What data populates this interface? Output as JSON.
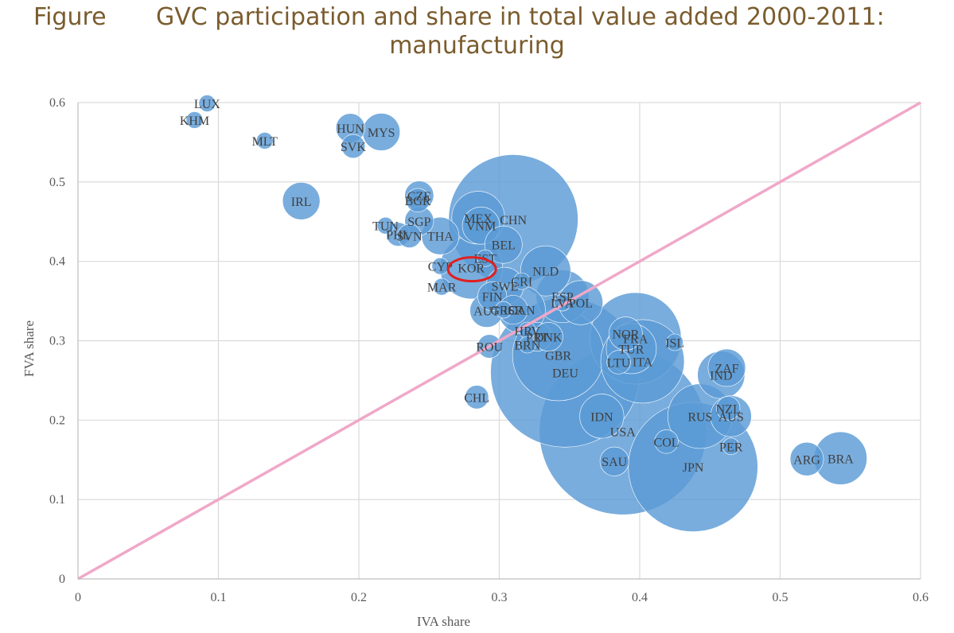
{
  "title": {
    "prefix": "Figure",
    "line1": "GVC participation and share in total value added 2000-2011:",
    "line2": "manufacturing"
  },
  "chart_data": {
    "type": "scatter",
    "subtype": "bubble",
    "xlabel": "IVA share",
    "ylabel": "FVA share",
    "xlim": [
      0,
      0.6
    ],
    "ylim": [
      0,
      0.6
    ],
    "xticks": [
      "0",
      "0.1",
      "0.2",
      "0.3",
      "0.4",
      "0.5",
      "0.6"
    ],
    "yticks": [
      "0",
      "0.1",
      "0.2",
      "0.3",
      "0.4",
      "0.5",
      "0.6"
    ],
    "grid": true,
    "reference_line": {
      "from": [
        0,
        0
      ],
      "to": [
        0.6,
        0.6
      ],
      "color": "#f0a8c8"
    },
    "bubble_color": "#5b9bd5",
    "highlight": {
      "label": "KOR",
      "color": "#e02020"
    },
    "points": [
      {
        "label": "LUX",
        "x": 0.092,
        "y": 0.599,
        "size": 1
      },
      {
        "label": "KHM",
        "x": 0.083,
        "y": 0.578,
        "size": 1
      },
      {
        "label": "MLT",
        "x": 0.133,
        "y": 0.552,
        "size": 1
      },
      {
        "label": "HUN",
        "x": 0.194,
        "y": 0.568,
        "size": 3
      },
      {
        "label": "MYS",
        "x": 0.216,
        "y": 0.563,
        "size": 5
      },
      {
        "label": "SVK",
        "x": 0.196,
        "y": 0.545,
        "size": 2
      },
      {
        "label": "IRL",
        "x": 0.159,
        "y": 0.476,
        "size": 5
      },
      {
        "label": "CZE",
        "x": 0.243,
        "y": 0.483,
        "size": 3
      },
      {
        "label": "BGR",
        "x": 0.242,
        "y": 0.477,
        "size": 2
      },
      {
        "label": "SGP",
        "x": 0.243,
        "y": 0.451,
        "size": 3
      },
      {
        "label": "TUN",
        "x": 0.219,
        "y": 0.445,
        "size": 1
      },
      {
        "label": "PHL",
        "x": 0.228,
        "y": 0.434,
        "size": 2
      },
      {
        "label": "SVN",
        "x": 0.236,
        "y": 0.432,
        "size": 2
      },
      {
        "label": "THA",
        "x": 0.258,
        "y": 0.432,
        "size": 5
      },
      {
        "label": "MEX",
        "x": 0.285,
        "y": 0.455,
        "size": 10
      },
      {
        "label": "VNM",
        "x": 0.287,
        "y": 0.445,
        "size": 5
      },
      {
        "label": "CHN",
        "x": 0.31,
        "y": 0.453,
        "size": 60
      },
      {
        "label": "BEL",
        "x": 0.303,
        "y": 0.421,
        "size": 5
      },
      {
        "label": "EST",
        "x": 0.29,
        "y": 0.404,
        "size": 1
      },
      {
        "label": "CYP",
        "x": 0.258,
        "y": 0.394,
        "size": 1
      },
      {
        "label": "KOR",
        "x": 0.28,
        "y": 0.392,
        "size": 14
      },
      {
        "label": "NLD",
        "x": 0.333,
        "y": 0.388,
        "size": 9
      },
      {
        "label": "CRI",
        "x": 0.316,
        "y": 0.375,
        "size": 1
      },
      {
        "label": "SWE",
        "x": 0.304,
        "y": 0.369,
        "size": 5
      },
      {
        "label": "MAR",
        "x": 0.259,
        "y": 0.368,
        "size": 1
      },
      {
        "label": "FIN",
        "x": 0.295,
        "y": 0.356,
        "size": 3
      },
      {
        "label": "ESP",
        "x": 0.345,
        "y": 0.356,
        "size": 10
      },
      {
        "label": "LVA",
        "x": 0.345,
        "y": 0.348,
        "size": 1
      },
      {
        "label": "POL",
        "x": 0.358,
        "y": 0.348,
        "size": 7
      },
      {
        "label": "AUT",
        "x": 0.291,
        "y": 0.338,
        "size": 4
      },
      {
        "label": "GRC",
        "x": 0.303,
        "y": 0.339,
        "size": 1
      },
      {
        "label": "ISR",
        "x": 0.31,
        "y": 0.339,
        "size": 3
      },
      {
        "label": "CAN",
        "x": 0.316,
        "y": 0.339,
        "size": 8
      },
      {
        "label": "HRV",
        "x": 0.32,
        "y": 0.313,
        "size": 1
      },
      {
        "label": "PRT",
        "x": 0.327,
        "y": 0.305,
        "size": 3
      },
      {
        "label": "DNK",
        "x": 0.335,
        "y": 0.305,
        "size": 3
      },
      {
        "label": "NOR",
        "x": 0.39,
        "y": 0.309,
        "size": 4
      },
      {
        "label": "FRA",
        "x": 0.397,
        "y": 0.303,
        "size": 30
      },
      {
        "label": "ISL",
        "x": 0.425,
        "y": 0.298,
        "size": 1
      },
      {
        "label": "ROU",
        "x": 0.293,
        "y": 0.293,
        "size": 2
      },
      {
        "label": "BRN",
        "x": 0.32,
        "y": 0.295,
        "size": 1
      },
      {
        "label": "TUR",
        "x": 0.394,
        "y": 0.29,
        "size": 9
      },
      {
        "label": "GBR",
        "x": 0.342,
        "y": 0.282,
        "size": 30
      },
      {
        "label": "LTU",
        "x": 0.385,
        "y": 0.273,
        "size": 2
      },
      {
        "label": "ITA",
        "x": 0.402,
        "y": 0.274,
        "size": 25
      },
      {
        "label": "DEU",
        "x": 0.347,
        "y": 0.26,
        "size": 80
      },
      {
        "label": "ZAF",
        "x": 0.462,
        "y": 0.266,
        "size": 5
      },
      {
        "label": "IND",
        "x": 0.458,
        "y": 0.257,
        "size": 8
      },
      {
        "label": "CHL",
        "x": 0.284,
        "y": 0.229,
        "size": 2
      },
      {
        "label": "NZL",
        "x": 0.463,
        "y": 0.215,
        "size": 2
      },
      {
        "label": "AUS",
        "x": 0.465,
        "y": 0.205,
        "size": 6
      },
      {
        "label": "RUS",
        "x": 0.443,
        "y": 0.205,
        "size": 15
      },
      {
        "label": "IDN",
        "x": 0.373,
        "y": 0.205,
        "size": 7
      },
      {
        "label": "USA",
        "x": 0.388,
        "y": 0.186,
        "size": 100
      },
      {
        "label": "COL",
        "x": 0.419,
        "y": 0.173,
        "size": 2
      },
      {
        "label": "PER",
        "x": 0.465,
        "y": 0.167,
        "size": 1
      },
      {
        "label": "SAU",
        "x": 0.382,
        "y": 0.148,
        "size": 3
      },
      {
        "label": "JPN",
        "x": 0.438,
        "y": 0.141,
        "size": 60
      },
      {
        "label": "ARG",
        "x": 0.519,
        "y": 0.151,
        "size": 4
      },
      {
        "label": "BRA",
        "x": 0.543,
        "y": 0.152,
        "size": 10
      }
    ]
  }
}
